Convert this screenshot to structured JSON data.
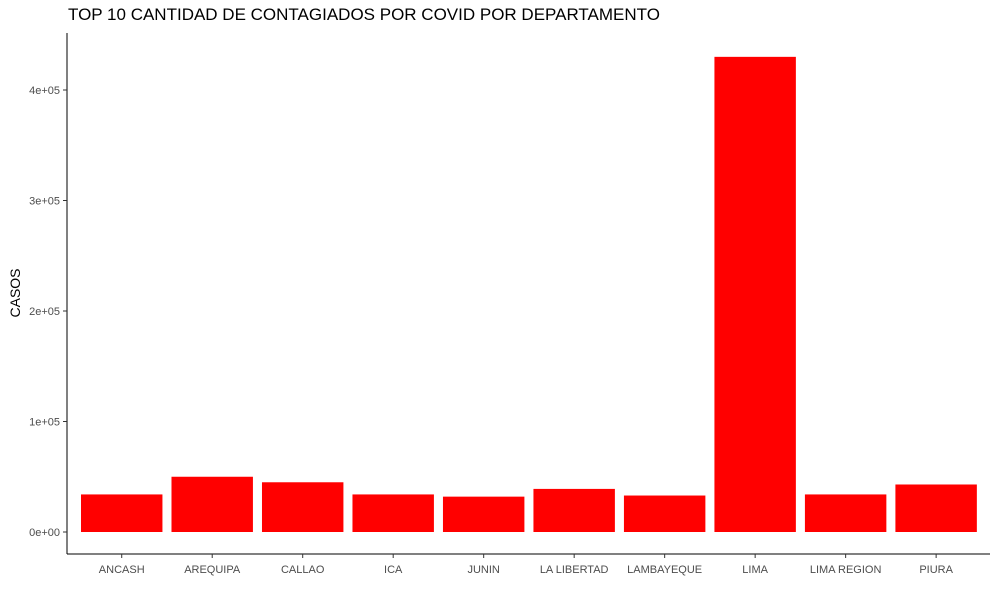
{
  "chart_data": {
    "type": "bar",
    "title": "TOP 10 CANTIDAD DE CONTAGIADOS POR COVID POR DEPARTAMENTO",
    "xlabel": "",
    "ylabel": "CASOS",
    "categories": [
      "ANCASH",
      "AREQUIPA",
      "CALLAO",
      "ICA",
      "JUNIN",
      "LA LIBERTAD",
      "LAMBAYEQUE",
      "LIMA",
      "LIMA REGION",
      "PIURA"
    ],
    "values": [
      34000,
      50000,
      45000,
      34000,
      32000,
      39000,
      33000,
      430000,
      34000,
      43000
    ],
    "ylim": [
      0,
      450000
    ],
    "yticks": [
      0,
      100000,
      200000,
      300000,
      400000
    ],
    "ytick_labels": [
      "0e+00",
      "1e+05",
      "2e+05",
      "3e+05",
      "4e+05"
    ],
    "bar_color": "#ff0000",
    "grid": false,
    "legend": "none"
  }
}
